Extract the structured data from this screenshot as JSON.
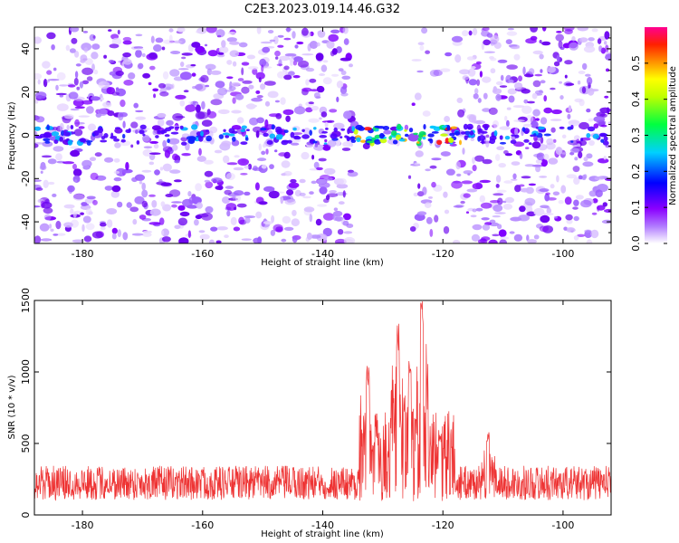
{
  "title": "C2E3.2023.019.14.46.G32",
  "chart_data": [
    {
      "type": "heatmap",
      "xlabel": "Height of straight line (km)",
      "ylabel": "Frequency (Hz)",
      "xlim": [
        -188,
        -92
      ],
      "ylim": [
        -50,
        50
      ],
      "x_ticks": [
        -180,
        -160,
        -140,
        -120,
        -100
      ],
      "y_ticks": [
        -40,
        -20,
        0,
        20,
        40
      ],
      "colorbar": {
        "label": "Normalized spectral amplitude",
        "range": [
          0,
          0.6
        ],
        "ticks": [
          0.0,
          0.1,
          0.2,
          0.3,
          0.4,
          0.5
        ],
        "colors": [
          "#ffffff",
          "#8b00ff",
          "#0000ff",
          "#00ffff",
          "#00ff00",
          "#ffff00",
          "#ff8000",
          "#ff0000",
          "#ff0080"
        ]
      },
      "features": {
        "signal_band_frequency_hz": 0,
        "strong_signal_x_range": [
          -135,
          -117
        ],
        "clean_gap_x_range": [
          -135,
          -126
        ]
      }
    },
    {
      "type": "line",
      "xlabel": "Height of straight line (km)",
      "ylabel": "SNR (10 * v/v)",
      "xlim": [
        -188,
        -92
      ],
      "ylim": [
        0,
        1500
      ],
      "x_ticks": [
        -180,
        -160,
        -140,
        -120,
        -100
      ],
      "y_ticks": [
        0,
        500,
        1000,
        1500
      ],
      "series": [
        {
          "color": "#ee3333",
          "baseline": 200,
          "noise": 150,
          "peaks": [
            {
              "x": -132.5,
              "y": 1050
            },
            {
              "x": -127.5,
              "y": 1340
            },
            {
              "x": -125.5,
              "y": 1080
            },
            {
              "x": -123.5,
              "y": 1500
            },
            {
              "x": -120.5,
              "y": 600
            },
            {
              "x": -112.5,
              "y": 600
            }
          ]
        }
      ]
    }
  ]
}
